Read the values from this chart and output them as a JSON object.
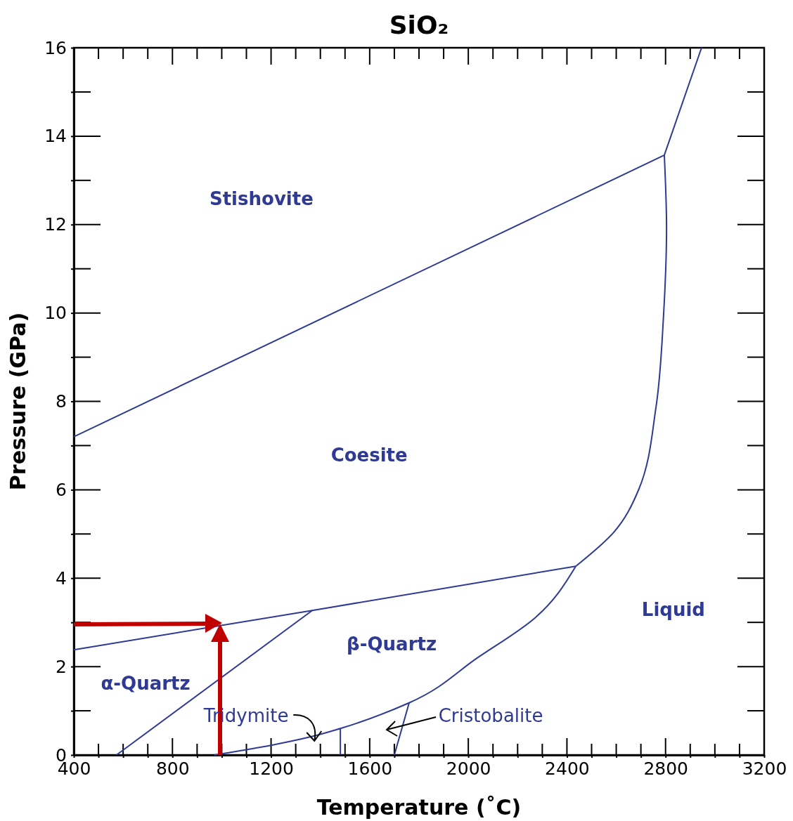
{
  "chart_data": {
    "type": "line",
    "title": "SiO₂",
    "xlabel": "Temperature (˚C)",
    "ylabel": "Pressure (GPa)",
    "xlim": [
      400,
      3200
    ],
    "ylim": [
      0,
      16
    ],
    "xticks": [
      400,
      {
        "value": 500,
        "label": null
      },
      {
        "value": 600,
        "label": null
      },
      {
        "value": 700,
        "label": null
      },
      800,
      {
        "value": 900,
        "label": null
      },
      {
        "value": 1000,
        "label": null
      },
      {
        "value": 1100,
        "label": null
      },
      1200,
      {
        "value": 1300,
        "label": null
      },
      {
        "value": 1400,
        "label": null
      },
      {
        "value": 1500,
        "label": null
      },
      1600,
      {
        "value": 1700,
        "label": null
      },
      {
        "value": 1800,
        "label": null
      },
      {
        "value": 1900,
        "label": null
      },
      2000,
      {
        "value": 2100,
        "label": null
      },
      {
        "value": 2200,
        "label": null
      },
      {
        "value": 2300,
        "label": null
      },
      2400,
      {
        "value": 2500,
        "label": null
      },
      {
        "value": 2600,
        "label": null
      },
      {
        "value": 2700,
        "label": null
      },
      2800,
      {
        "value": 2900,
        "label": null
      },
      {
        "value": 3000,
        "label": null
      },
      {
        "value": 3100,
        "label": null
      },
      3200
    ],
    "yticks": [
      0,
      {
        "value": 1,
        "label": null
      },
      2,
      {
        "value": 3,
        "label": null
      },
      4,
      {
        "value": 5,
        "label": null
      },
      6,
      {
        "value": 7,
        "label": null
      },
      8,
      {
        "value": 9,
        "label": null
      },
      10,
      {
        "value": 11,
        "label": null
      },
      12,
      {
        "value": 13,
        "label": null
      },
      14,
      {
        "value": 15,
        "label": null
      },
      16
    ],
    "grid": false,
    "marker": "none",
    "line_style": "solid",
    "series": [
      {
        "color": "#2e3a94",
        "x": [
          400,
          2795
        ],
        "values": [
          7.2,
          13.57
        ]
      },
      {
        "color": "#2e3a94",
        "x": [
          2795,
          2946
        ],
        "values": [
          13.57,
          16
        ]
      },
      {
        "color": "#2e3a94",
        "x": [
          2795,
          2804,
          2792,
          2761,
          2690,
          2587,
          2436
        ],
        "values": [
          13.57,
          11.92,
          9.96,
          7.86,
          5.99,
          5.02,
          4.27
        ]
      },
      {
        "color": "#2e3a94",
        "x": [
          400,
          1367,
          2436
        ],
        "values": [
          2.38,
          3.27,
          4.27
        ]
      },
      {
        "color": "#2e3a94",
        "x": [
          573,
          1367
        ],
        "values": [
          0,
          3.27
        ]
      },
      {
        "color": "#2e3a94",
        "x": [
          970,
          1200,
          1367,
          1481,
          1760,
          2040,
          2270,
          2436
        ],
        "values": [
          0,
          0.22,
          0.42,
          0.6,
          1.18,
          2.21,
          3.1,
          4.27
        ]
      },
      {
        "color": "#2e3a94",
        "x": [
          1481,
          1481
        ],
        "values": [
          0,
          0.6
        ]
      },
      {
        "color": "#2e3a94",
        "x": [
          1700,
          1760
        ],
        "values": [
          0,
          1.18
        ]
      }
    ],
    "annotations": [
      "Stishovite",
      "Coesite",
      "Liquid",
      "β-Quartz",
      "α-Quartz",
      "Tridymite",
      "Cristobalite"
    ]
  }
}
